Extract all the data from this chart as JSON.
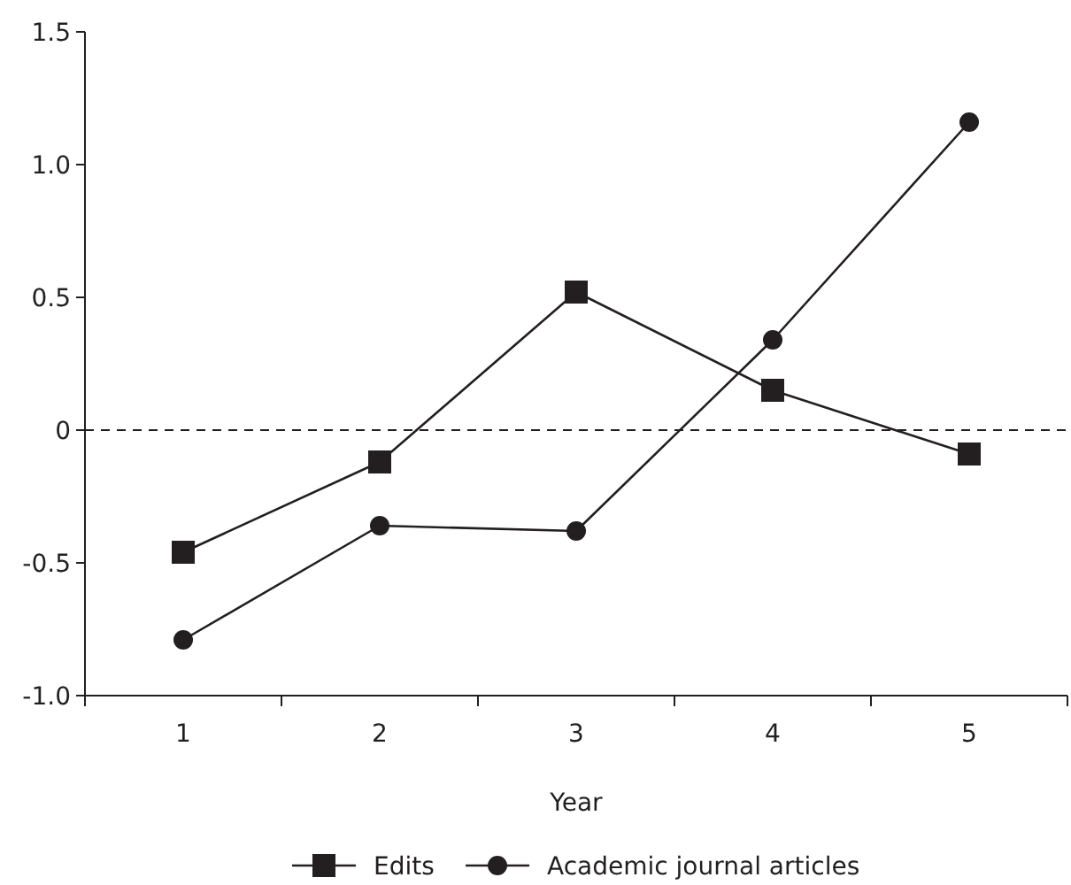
{
  "chart_data": {
    "type": "line",
    "xlabel": "Year",
    "categories": [
      "1",
      "2",
      "3",
      "4",
      "5"
    ],
    "series": [
      {
        "name": "Edits",
        "color": "#231f20",
        "marker": "square",
        "values": [
          -0.46,
          -0.12,
          0.52,
          0.15,
          -0.09
        ]
      },
      {
        "name": "Academic journal articles",
        "color": "#231f20",
        "marker": "circle",
        "values": [
          -0.79,
          -0.36,
          -0.38,
          0.34,
          1.16
        ]
      }
    ],
    "ylim": [
      -1.0,
      1.5
    ],
    "yticks": [
      {
        "value": -1,
        "label": "-1.0"
      },
      {
        "value": -0.5,
        "label": "-0.5"
      },
      0,
      {
        "value": 0.5,
        "label": "0.5"
      },
      {
        "value": 1,
        "label": "1.0"
      },
      {
        "value": 1.5,
        "label": "1.5"
      }
    ],
    "ref_lines": [
      {
        "axis": "y",
        "value": 0,
        "line_style": "dashed",
        "color": "#231f20"
      }
    ],
    "legend": "bottom",
    "grid": false,
    "line_style": "solid"
  }
}
